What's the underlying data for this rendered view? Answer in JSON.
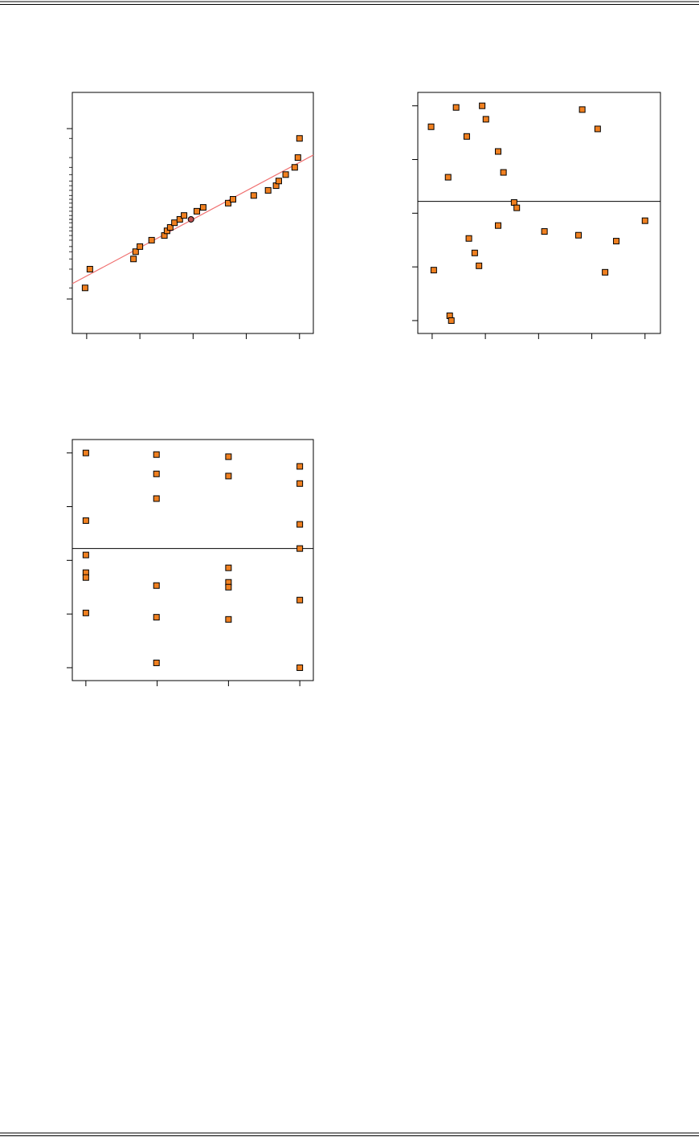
{
  "chart_data": [
    {
      "type": "scatter",
      "color": "#f08020",
      "highlight_index": 12,
      "highlight_color": "#c05050",
      "x": [
        -0.03,
        0.06,
        0.88,
        0.92,
        1.0,
        1.22,
        1.46,
        1.51,
        1.57,
        1.65,
        1.75,
        1.83,
        1.96,
        2.07,
        2.19,
        2.66,
        2.75,
        3.14,
        3.41,
        3.56,
        3.61,
        3.74,
        3.91,
        3.97,
        4.0
      ],
      "y": [
        0.26,
        0.7,
        0.94,
        1.11,
        1.23,
        1.38,
        1.49,
        1.6,
        1.68,
        1.79,
        1.87,
        1.96,
        1.87,
        2.06,
        2.15,
        2.25,
        2.34,
        2.43,
        2.55,
        2.66,
        2.77,
        2.92,
        3.09,
        3.32,
        3.77
      ],
      "xlim": [
        -0.27,
        4.26
      ],
      "ylim": [
        -0.81,
        4.85
      ],
      "xticks": [
        0,
        1,
        2,
        3,
        4
      ],
      "yticks": [
        0,
        4
      ],
      "y_rug": true,
      "fit_line": {
        "x": [
          -0.27,
          4.26
        ],
        "y": [
          0.36,
          3.38
        ]
      },
      "line_color": "#f07070"
    },
    {
      "type": "scatter",
      "color": "#f08020",
      "x": [
        -0.02,
        0.3,
        0.45,
        0.65,
        0.94,
        1.01,
        1.24,
        1.34,
        1.54,
        1.59,
        2.82,
        3.11,
        0.03,
        0.33,
        0.36,
        0.69,
        0.8,
        0.88,
        1.24,
        2.11,
        2.75,
        3.25,
        3.46,
        4.0
      ],
      "y": [
        3.61,
        2.67,
        3.97,
        3.43,
        4.0,
        3.75,
        3.15,
        2.76,
        2.2,
        2.1,
        3.93,
        3.57,
        0.94,
        0.09,
        0.0,
        1.53,
        1.26,
        1.02,
        1.77,
        1.66,
        1.59,
        0.9,
        1.48,
        1.86
      ],
      "xlim": [
        -0.27,
        4.29
      ],
      "ylim": [
        -0.24,
        4.25
      ],
      "xticks": [
        0,
        1,
        2,
        3,
        4
      ],
      "yticks": [
        0,
        1,
        2,
        3,
        4
      ],
      "hline": 2.22,
      "line_color": "#000000"
    },
    {
      "type": "scatter",
      "color": "#f08020",
      "x": [
        0,
        0,
        0,
        0,
        0,
        0,
        0.99,
        0.99,
        0.99,
        0.99,
        0.99,
        0.99,
        2.0,
        2.0,
        2.0,
        2.0,
        2.0,
        2.0,
        3.0,
        3.0,
        3.0,
        3.0,
        3.0,
        3.0
      ],
      "y": [
        4.0,
        2.74,
        2.1,
        1.77,
        1.68,
        1.02,
        3.97,
        3.61,
        3.15,
        1.53,
        0.94,
        0.09,
        3.93,
        3.57,
        1.86,
        1.59,
        1.5,
        0.9,
        3.75,
        3.43,
        2.67,
        2.22,
        1.26,
        0.0
      ],
      "xlim": [
        -0.19,
        3.19
      ],
      "ylim": [
        -0.24,
        4.25
      ],
      "xticks": [
        0,
        1,
        2,
        3
      ],
      "yticks": [
        0,
        1,
        2,
        3,
        4
      ],
      "hline": 2.22,
      "line_color": "#000000"
    }
  ]
}
